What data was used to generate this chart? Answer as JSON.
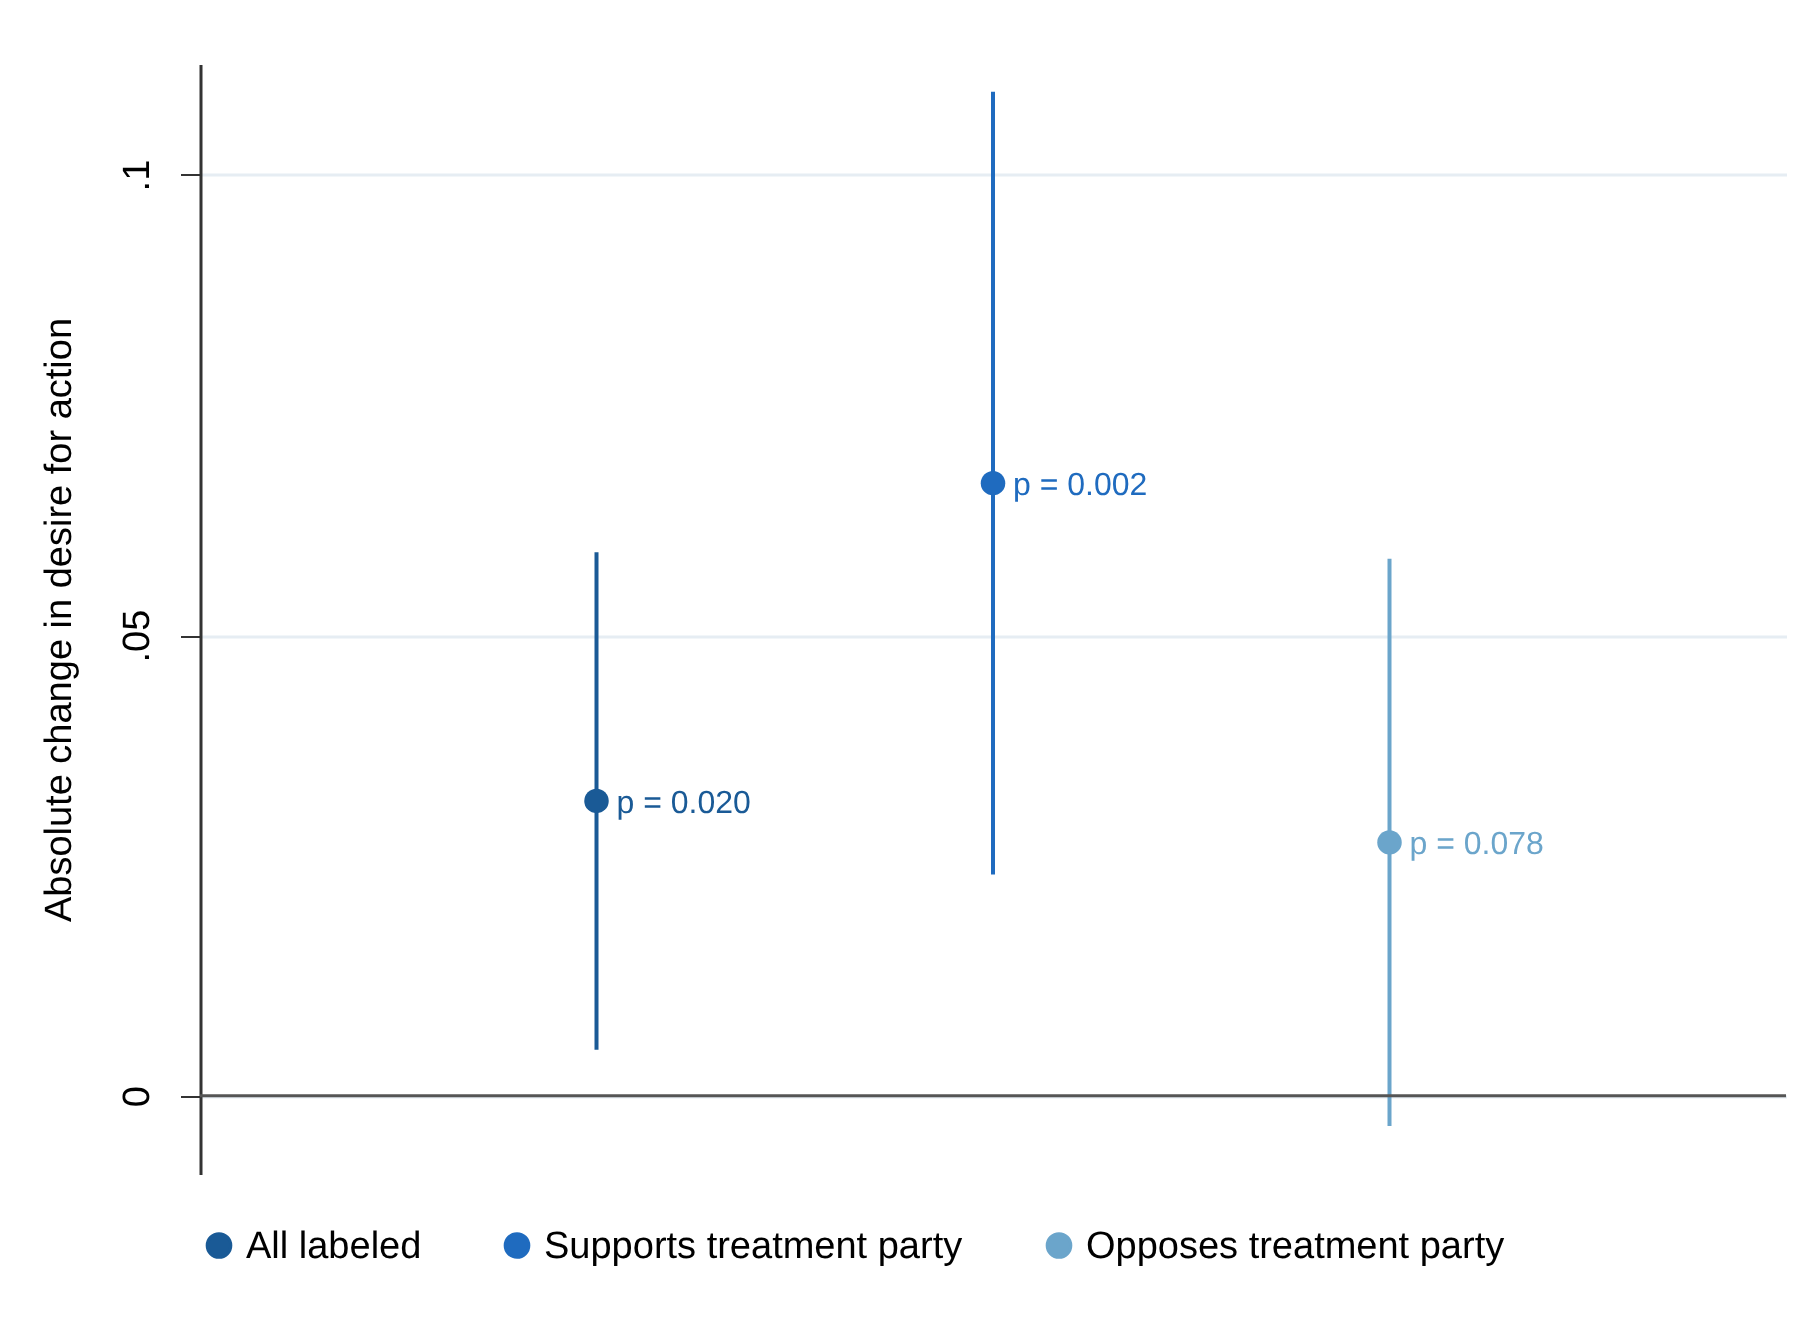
{
  "chart_data": {
    "type": "scatter",
    "ylabel": "Absolute change in desire for action",
    "categories": [
      null,
      null,
      null
    ],
    "series": [
      {
        "name": "All labeled",
        "color": "#1a5a96",
        "values": [
          0.032,
          null,
          null
        ],
        "errors": [
          [
            0.005,
            0.059
          ],
          null,
          null
        ]
      },
      {
        "name": "Supports treatment party",
        "color": "#1f6bbf",
        "values": [
          null,
          0.0665,
          null
        ],
        "errors": [
          null,
          [
            0.024,
            0.109
          ],
          null
        ]
      },
      {
        "name": "Opposes treatment party",
        "color": "#6ba5cb",
        "values": [
          null,
          null,
          0.0275
        ],
        "errors": [
          null,
          null,
          [
            -0.0033,
            0.0583
          ]
        ]
      }
    ],
    "annotations": [
      "p = 0.020",
      "p = 0.002",
      "p = 0.078"
    ],
    "ylim": [
      -0.0085,
      0.112
    ],
    "yticks": [
      0,
      {
        "value": 0.05,
        "label": ".05"
      },
      {
        "value": 0.1,
        "label": ".1"
      }
    ],
    "ref_lines": [
      {
        "axis": "y",
        "value": 0,
        "color": "#555555"
      }
    ],
    "grid": "y",
    "legend": "bottom",
    "marker": "circle",
    "tick_labels": "y"
  }
}
